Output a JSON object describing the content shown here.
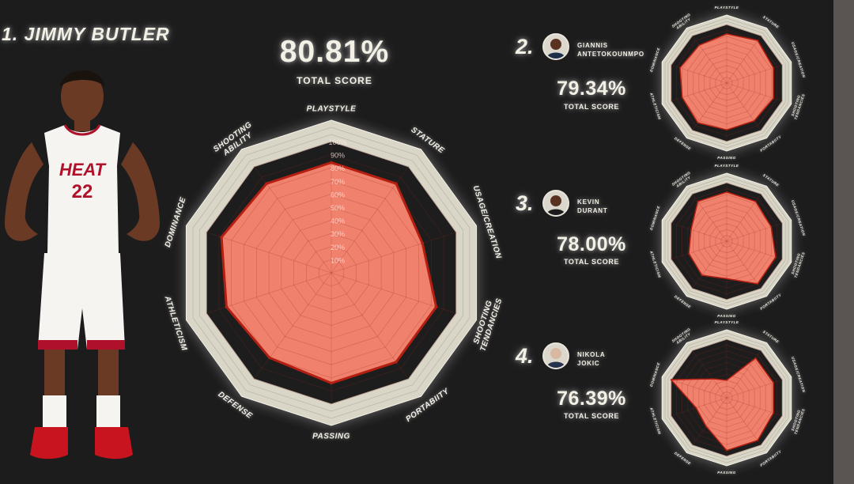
{
  "main": {
    "rank_title": "1. JIMMY BUTLER",
    "total_score": "80.81%",
    "total_score_label": "TOTAL SCORE",
    "jersey_team": "HEAT",
    "jersey_number": "22"
  },
  "others": [
    {
      "rank": "2.",
      "name_line1": "GIANNIS",
      "name_line2": "ANTETOKOUNMPO",
      "total_score": "79.34%",
      "total_score_label": "TOTAL SCORE"
    },
    {
      "rank": "3.",
      "name_line1": "KEVIN",
      "name_line2": "DURANT",
      "total_score": "78.00%",
      "total_score_label": "TOTAL SCORE"
    },
    {
      "rank": "4.",
      "name_line1": "NIKOLA",
      "name_line2": "JOKIC",
      "total_score": "76.39%",
      "total_score_label": "TOTAL SCORE"
    }
  ],
  "colors": {
    "background": "#1d1c1c",
    "outer_ring": "#d9d6c8",
    "fill": "#f0816d",
    "stroke": "#b41f12",
    "text": "#f3f0e6"
  },
  "chart_data": [
    {
      "type": "radar",
      "player": "JIMMY BUTLER",
      "categories": [
        "PLAYSTYLE",
        "STATURE",
        "USAGE/CREATION",
        "SHOOTING TENDANCIES",
        "PORTABIITY",
        "PASSING",
        "DEFENSE",
        "ATHLETICISM",
        "DOMINANCE",
        "SHOOTING ABILITY"
      ],
      "values": [
        84,
        84,
        73,
        84,
        84,
        84,
        80,
        84,
        88,
        84
      ],
      "ring_labels": [
        "10%",
        "20%",
        "30%",
        "40%",
        "50%",
        "60%",
        "70%",
        "80%",
        "90%",
        "100%"
      ],
      "range": [
        0,
        100
      ]
    },
    {
      "type": "radar",
      "player": "GIANNIS ANTETOKOUNMPO",
      "categories": [
        "PLAYSTYLE",
        "STATURE",
        "USAGE/CREATION",
        "SHOOTING TENDANCIES",
        "PORTABIITY",
        "PASSING",
        "DEFENSE",
        "ATHLETICISM",
        "DOMINANCE",
        "SHOOTING ABILITY"
      ],
      "values": [
        84,
        90,
        84,
        84,
        80,
        80,
        84,
        80,
        84,
        80
      ],
      "range": [
        0,
        100
      ]
    },
    {
      "type": "radar",
      "player": "KEVIN DURANT",
      "categories": [
        "PLAYSTYLE",
        "STATURE",
        "USAGE/CREATION",
        "SHOOTING TENDANCIES",
        "PORTABIITY",
        "PASSING",
        "DEFENSE",
        "ATHLETICISM",
        "DOMINANCE",
        "SHOOTING ABILITY"
      ],
      "values": [
        84,
        84,
        80,
        88,
        90,
        64,
        72,
        68,
        64,
        84
      ],
      "range": [
        0,
        100
      ]
    },
    {
      "type": "radar",
      "player": "NIKOLA JOKIC",
      "categories": [
        "PLAYSTYLE",
        "STATURE",
        "USAGE/CREATION",
        "SHOOTING TENDANCIES",
        "PORTABIITY",
        "PASSING",
        "DEFENSE",
        "ATHLETICISM",
        "DOMINANCE",
        "SHOOTING ABILITY"
      ],
      "values": [
        30,
        84,
        84,
        84,
        90,
        90,
        60,
        55,
        100,
        40
      ],
      "range": [
        0,
        100
      ]
    }
  ]
}
